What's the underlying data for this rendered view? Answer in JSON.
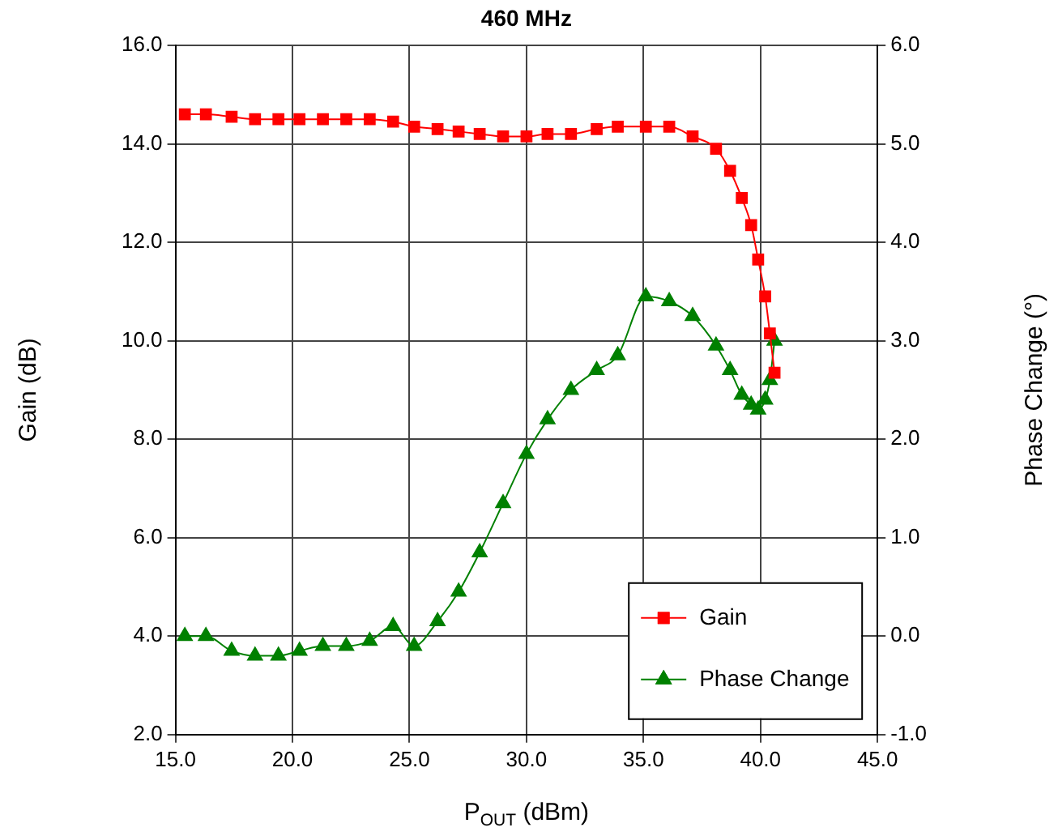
{
  "chart_data": {
    "type": "line",
    "title": "460 MHz",
    "xlabel": "P$_{OUT}$ (dBm)",
    "ylabel": "Gain (dB)",
    "y2label": "Phase Change (°)",
    "x": [
      15.4,
      16.3,
      17.4,
      18.4,
      19.4,
      20.3,
      21.3,
      22.3,
      23.3,
      24.3,
      25.2,
      26.2,
      27.1,
      28.0,
      29.0,
      30.0,
      30.9,
      31.9,
      33.0,
      33.9,
      35.1,
      36.1,
      37.1,
      38.1,
      38.7,
      39.2,
      39.6,
      39.9,
      40.2,
      40.4,
      40.6
    ],
    "series": [
      {
        "name": "Gain",
        "color": "#ff0000",
        "marker": "square",
        "values": [
          14.6,
          14.6,
          14.55,
          14.5,
          14.5,
          14.5,
          14.5,
          14.5,
          14.5,
          14.45,
          14.35,
          14.3,
          14.25,
          14.2,
          14.15,
          14.15,
          14.2,
          14.2,
          14.3,
          14.35,
          14.35,
          14.35,
          14.15,
          13.9,
          13.45,
          12.9,
          12.35,
          11.65,
          10.9,
          10.15,
          9.35
        ]
      },
      {
        "name": "Phase Change",
        "color": "#008000",
        "marker": "triangle",
        "axis": "y2",
        "values": [
          0,
          0,
          -0.15,
          -0.2,
          -0.2,
          -0.15,
          -0.1,
          -0.1,
          -0.05,
          0.1,
          -0.1,
          0.15,
          0.45,
          0.85,
          1.35,
          1.85,
          2.2,
          2.5,
          2.7,
          2.85,
          3.45,
          3.4,
          3.25,
          2.95,
          2.7,
          2.45,
          2.35,
          2.3,
          2.4,
          2.6,
          3.0
        ]
      }
    ],
    "xlim": [
      15,
      45
    ],
    "xticks": [
      {
        "value": 15,
        "label": "15.0"
      },
      {
        "value": 20,
        "label": "20.0"
      },
      {
        "value": 25,
        "label": "25.0"
      },
      {
        "value": 30,
        "label": "30.0"
      },
      {
        "value": 35,
        "label": "35.0"
      },
      {
        "value": 40,
        "label": "40.0"
      },
      {
        "value": 45,
        "label": "45.0"
      }
    ],
    "ylim": [
      2,
      16
    ],
    "yticks": [
      {
        "value": 2,
        "label": "2.0"
      },
      {
        "value": 4,
        "label": "4.0"
      },
      {
        "value": 6,
        "label": "6.0"
      },
      {
        "value": 8,
        "label": "8.0"
      },
      {
        "value": 10,
        "label": "10.0"
      },
      {
        "value": 12,
        "label": "12.0"
      },
      {
        "value": 14,
        "label": "14.0"
      },
      {
        "value": 16,
        "label": "16.0"
      }
    ],
    "y2lim": [
      -1,
      6
    ],
    "y2ticks": [
      {
        "value": -1,
        "label": "-1.0"
      },
      {
        "value": 0,
        "label": "0.0"
      },
      {
        "value": 1,
        "label": "1.0"
      },
      {
        "value": 2,
        "label": "2.0"
      },
      {
        "value": 3,
        "label": "3.0"
      },
      {
        "value": 4,
        "label": "4.0"
      },
      {
        "value": 5,
        "label": "5.0"
      },
      {
        "value": 6,
        "label": "6.0"
      }
    ],
    "grid": true,
    "legend": "bottom right",
    "line_style": "solid"
  }
}
